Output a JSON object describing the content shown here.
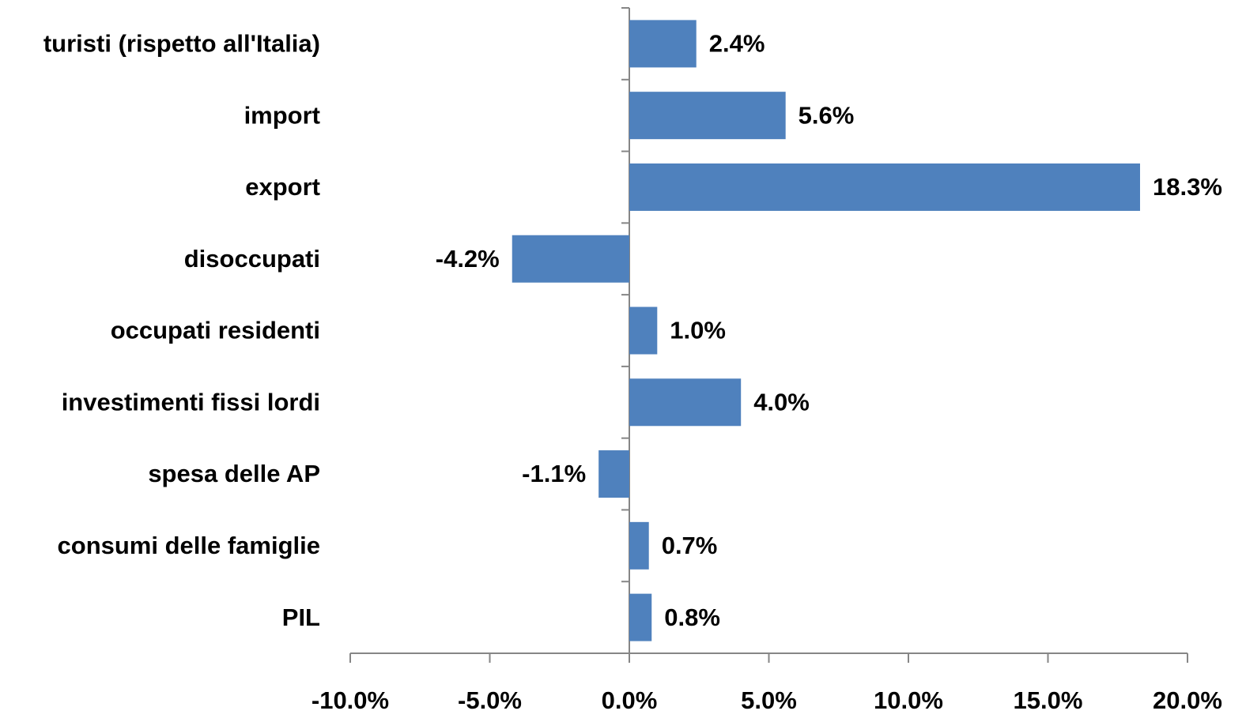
{
  "chart_data": {
    "type": "bar",
    "orientation": "horizontal",
    "categories": [
      "turisti (rispetto all'Italia)",
      "import",
      "export",
      "disoccupati",
      "occupati residenti",
      "investimenti fissi lordi",
      "spesa delle AP",
      "consumi delle famiglie",
      "PIL"
    ],
    "values": [
      2.4,
      5.6,
      18.3,
      -4.2,
      1.0,
      4.0,
      -1.1,
      0.7,
      0.8
    ],
    "value_labels": [
      "2.4%",
      "5.6%",
      "18.3%",
      "-4.2%",
      "1.0%",
      "4.0%",
      "-1.1%",
      "0.7%",
      "0.8%"
    ],
    "color": "#4f81bd",
    "xlim": [
      -10,
      20
    ],
    "xticks": [
      {
        "value": -10,
        "label": "-10.0%"
      },
      {
        "value": -5,
        "label": "-5.0%"
      },
      {
        "value": 0,
        "label": "0.0%"
      },
      {
        "value": 5,
        "label": "5.0%"
      },
      {
        "value": 10,
        "label": "10.0%"
      },
      {
        "value": 15,
        "label": "15.0%"
      },
      {
        "value": 20,
        "label": "20.0%"
      }
    ],
    "grid": false
  }
}
